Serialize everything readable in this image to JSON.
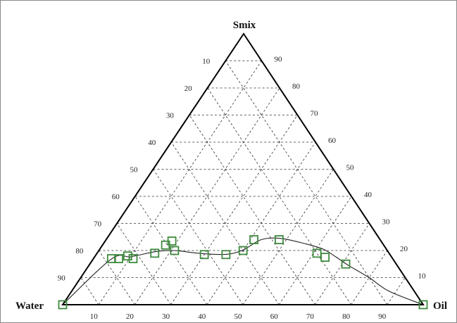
{
  "chart_data": {
    "type": "scatter",
    "subtype": "ternary",
    "vertices": {
      "top": "Smix",
      "left": "Water",
      "right": "Oil"
    },
    "left_edge_ticks": [
      "10",
      "20",
      "30",
      "40",
      "50",
      "60",
      "70",
      "80",
      "90"
    ],
    "right_edge_ticks": [
      "90",
      "80",
      "70",
      "60",
      "50",
      "40",
      "30",
      "20",
      "10"
    ],
    "bottom_edge_ticks": [
      "10",
      "20",
      "30",
      "40",
      "50",
      "60",
      "70",
      "80",
      "90"
    ],
    "grid": true,
    "grid_style": "dashed",
    "marker": "hollow-square",
    "marker_color": "#3e8a3e",
    "line_color": "#222222",
    "points_percent": [
      {
        "oil": 0,
        "smix": 0
      },
      {
        "oil": 5,
        "smix": 17
      },
      {
        "oil": 7,
        "smix": 17
      },
      {
        "oil": 9,
        "smix": 18
      },
      {
        "oil": 11,
        "smix": 17
      },
      {
        "oil": 16,
        "smix": 19
      },
      {
        "oil": 17.5,
        "smix": 22
      },
      {
        "oil": 18.5,
        "smix": 23.5
      },
      {
        "oil": 21,
        "smix": 20
      },
      {
        "oil": 30,
        "smix": 18.5
      },
      {
        "oil": 36,
        "smix": 18.5
      },
      {
        "oil": 40,
        "smix": 20
      },
      {
        "oil": 41,
        "smix": 24
      },
      {
        "oil": 48,
        "smix": 24
      },
      {
        "oil": 61,
        "smix": 19
      },
      {
        "oil": 64,
        "smix": 17.5
      },
      {
        "oil": 71,
        "smix": 15
      },
      {
        "oil": 100,
        "smix": 0
      }
    ],
    "curve_percent": [
      {
        "oil": 0,
        "smix": 0
      },
      {
        "oil": 5,
        "smix": 16.8
      },
      {
        "oil": 10,
        "smix": 17.7
      },
      {
        "oil": 16,
        "smix": 19.6
      },
      {
        "oil": 21,
        "smix": 20
      },
      {
        "oil": 28,
        "smix": 19
      },
      {
        "oil": 36,
        "smix": 18.6
      },
      {
        "oil": 40,
        "smix": 20.3
      },
      {
        "oil": 43,
        "smix": 24
      },
      {
        "oil": 48,
        "smix": 24.5
      },
      {
        "oil": 56,
        "smix": 22.5
      },
      {
        "oil": 62,
        "smix": 20.5
      },
      {
        "oil": 67,
        "smix": 17.6
      },
      {
        "oil": 72,
        "smix": 14.5
      },
      {
        "oil": 80,
        "smix": 10
      },
      {
        "oil": 88,
        "smix": 5
      },
      {
        "oil": 100,
        "smix": 0
      }
    ]
  }
}
